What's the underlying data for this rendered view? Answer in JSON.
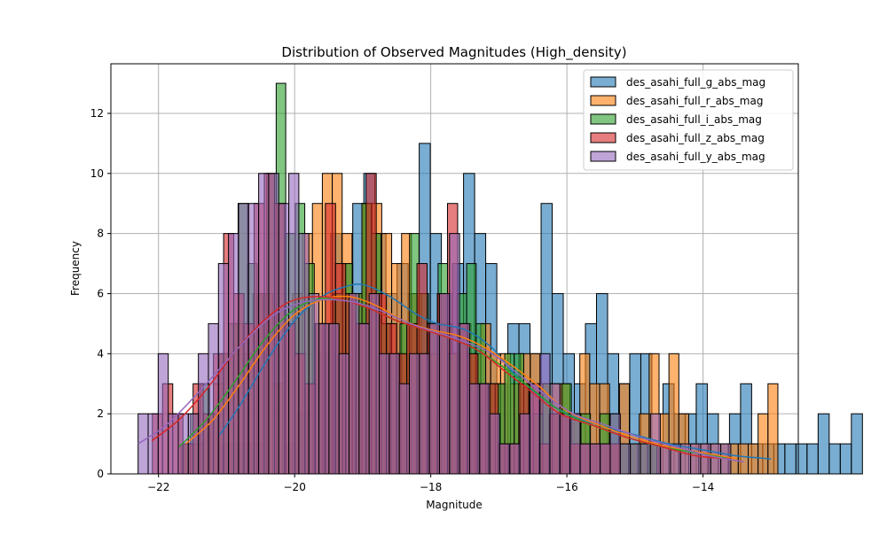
{
  "chart_data": {
    "type": "bar",
    "title": "Distribution of Observed Magnitudes (High_density)",
    "xlabel": "Magnitude",
    "ylabel": "Frequency",
    "xlim": [
      -22.7,
      -12.6
    ],
    "ylim": [
      0,
      13.65
    ],
    "x_ticks": [
      -22,
      -20,
      -18,
      -16,
      -14
    ],
    "x_tick_labels": [
      "−22",
      "−20",
      "−18",
      "−16",
      "−14"
    ],
    "y_ticks": [
      0,
      2,
      4,
      6,
      8,
      10,
      12
    ],
    "y_tick_labels": [
      "0",
      "2",
      "4",
      "6",
      "8",
      "10",
      "12"
    ],
    "grid": true,
    "legend_position": "top-right",
    "series": [
      {
        "name": "des_asahi_full_g_abs_mag",
        "color": "#1f77b4",
        "bin_start": -21.1,
        "bin_width": 0.1628,
        "counts": [
          1,
          1,
          1,
          1,
          0,
          0,
          1,
          2,
          3,
          4,
          8,
          7,
          9,
          10,
          8,
          6,
          7,
          6,
          11,
          8,
          6,
          7,
          10,
          8,
          7,
          3,
          5,
          5,
          4,
          9,
          6,
          4,
          3,
          5,
          6,
          4,
          3,
          4,
          4,
          1,
          3,
          2,
          2,
          3,
          2,
          1,
          2,
          3,
          1,
          1,
          1,
          1,
          1,
          1,
          2,
          1,
          1,
          2
        ],
        "kde": [
          [
            -21.1,
            1.3
          ],
          [
            -20.8,
            2.3
          ],
          [
            -20.4,
            3.8
          ],
          [
            -20.0,
            5.1
          ],
          [
            -19.6,
            5.9
          ],
          [
            -19.3,
            6.2
          ],
          [
            -19.0,
            6.3
          ],
          [
            -18.6,
            5.9
          ],
          [
            -18.2,
            5.3
          ],
          [
            -17.9,
            5.0
          ],
          [
            -17.5,
            4.8
          ],
          [
            -17.1,
            4.2
          ],
          [
            -16.8,
            3.4
          ],
          [
            -16.4,
            2.6
          ],
          [
            -16.0,
            2.0
          ],
          [
            -15.5,
            1.6
          ],
          [
            -15.0,
            1.3
          ],
          [
            -14.5,
            1.0
          ],
          [
            -14.0,
            0.8
          ],
          [
            -13.5,
            0.6
          ],
          [
            -13.0,
            0.5
          ]
        ]
      },
      {
        "name": "des_asahi_full_r_abs_mag",
        "color": "#ff7f0e",
        "bin_start": -21.63,
        "bin_width": 0.1455,
        "counts": [
          1,
          1,
          2,
          3,
          4,
          5,
          4,
          6,
          6,
          3,
          5,
          6,
          8,
          9,
          10,
          10,
          8,
          6,
          9,
          9,
          8,
          7,
          8,
          6,
          4,
          4,
          5,
          4,
          5,
          4,
          5,
          4,
          4,
          3,
          4,
          4,
          3,
          3,
          3,
          2,
          4,
          3,
          3,
          1,
          3,
          1,
          2,
          4,
          2,
          4,
          2,
          1,
          1,
          1,
          1,
          1,
          1,
          1,
          2,
          3
        ],
        "kde": [
          [
            -21.6,
            1.0
          ],
          [
            -21.2,
            1.8
          ],
          [
            -20.8,
            3.0
          ],
          [
            -20.4,
            4.3
          ],
          [
            -20.0,
            5.3
          ],
          [
            -19.6,
            5.8
          ],
          [
            -19.2,
            5.9
          ],
          [
            -18.8,
            5.6
          ],
          [
            -18.4,
            5.1
          ],
          [
            -18.0,
            4.8
          ],
          [
            -17.6,
            4.6
          ],
          [
            -17.2,
            4.2
          ],
          [
            -16.8,
            3.6
          ],
          [
            -16.4,
            2.9
          ],
          [
            -16.0,
            2.1
          ],
          [
            -15.5,
            1.6
          ],
          [
            -15.0,
            1.2
          ],
          [
            -14.5,
            0.9
          ],
          [
            -14.0,
            0.7
          ],
          [
            -13.5,
            0.5
          ]
        ]
      },
      {
        "name": "des_asahi_full_i_abs_mag",
        "color": "#2ca02c",
        "bin_start": -21.67,
        "bin_width": 0.1399,
        "counts": [
          1,
          2,
          3,
          2,
          4,
          5,
          9,
          7,
          6,
          10,
          13,
          8,
          9,
          7,
          5,
          5,
          6,
          7,
          6,
          9,
          8,
          5,
          4,
          5,
          8,
          6,
          5,
          7,
          4,
          6,
          7,
          5,
          3,
          3,
          4,
          4,
          3,
          2,
          3,
          2,
          3,
          2,
          2,
          1,
          2,
          2,
          1,
          1,
          1,
          1
        ],
        "kde": [
          [
            -21.7,
            0.9
          ],
          [
            -21.3,
            1.8
          ],
          [
            -20.9,
            3.0
          ],
          [
            -20.5,
            4.3
          ],
          [
            -20.1,
            5.3
          ],
          [
            -19.7,
            5.8
          ],
          [
            -19.3,
            5.8
          ],
          [
            -18.9,
            5.5
          ],
          [
            -18.5,
            5.1
          ],
          [
            -18.1,
            4.8
          ],
          [
            -17.7,
            4.5
          ],
          [
            -17.3,
            4.1
          ],
          [
            -16.9,
            3.5
          ],
          [
            -16.5,
            2.8
          ],
          [
            -16.1,
            2.1
          ],
          [
            -15.6,
            1.6
          ],
          [
            -15.1,
            1.2
          ],
          [
            -14.6,
            0.9
          ],
          [
            -14.1,
            0.7
          ],
          [
            -13.6,
            0.5
          ]
        ]
      },
      {
        "name": "des_asahi_full_z_abs_mag",
        "color": "#d62728",
        "bin_start": -22.09,
        "bin_width": 0.1495,
        "counts": [
          2,
          3,
          2,
          1,
          3,
          2,
          4,
          8,
          6,
          5,
          9,
          10,
          9,
          5,
          4,
          3,
          5,
          9,
          7,
          6,
          5,
          10,
          6,
          5,
          4,
          5,
          7,
          5,
          6,
          9,
          5,
          4,
          3,
          3,
          1,
          1,
          3,
          3,
          1,
          2,
          2,
          1,
          1,
          1,
          1,
          1
        ],
        "kde": [
          [
            -22.1,
            1.1
          ],
          [
            -21.7,
            1.8
          ],
          [
            -21.3,
            2.8
          ],
          [
            -20.9,
            4.0
          ],
          [
            -20.5,
            5.0
          ],
          [
            -20.1,
            5.7
          ],
          [
            -19.7,
            5.9
          ],
          [
            -19.3,
            5.8
          ],
          [
            -18.9,
            5.5
          ],
          [
            -18.5,
            5.1
          ],
          [
            -18.1,
            4.8
          ],
          [
            -17.7,
            4.5
          ],
          [
            -17.3,
            4.1
          ],
          [
            -16.9,
            3.4
          ],
          [
            -16.5,
            2.7
          ],
          [
            -16.1,
            2.0
          ],
          [
            -15.6,
            1.6
          ],
          [
            -15.1,
            1.2
          ],
          [
            -14.6,
            0.9
          ],
          [
            -14.1,
            0.6
          ],
          [
            -13.6,
            0.5
          ]
        ]
      },
      {
        "name": "des_asahi_full_y_abs_mag",
        "color": "#9467bd",
        "bin_start": -22.3,
        "bin_width": 0.1476,
        "counts": [
          2,
          2,
          4,
          2,
          2,
          2,
          4,
          5,
          7,
          8,
          9,
          9,
          10,
          10,
          9,
          10,
          8,
          6,
          5,
          5,
          4,
          6,
          5,
          6,
          4,
          4,
          3,
          4,
          4,
          5,
          6,
          8,
          5,
          3,
          3,
          2,
          1,
          1,
          2,
          3,
          4,
          3,
          2,
          2,
          1,
          1,
          1,
          2,
          1,
          1,
          1,
          2,
          1,
          1,
          1,
          1,
          1,
          1,
          1
        ],
        "kde": [
          [
            -22.3,
            1.0
          ],
          [
            -21.9,
            1.6
          ],
          [
            -21.5,
            2.5
          ],
          [
            -21.1,
            3.5
          ],
          [
            -20.7,
            4.5
          ],
          [
            -20.3,
            5.3
          ],
          [
            -19.9,
            5.7
          ],
          [
            -19.5,
            5.8
          ],
          [
            -19.1,
            5.7
          ],
          [
            -18.7,
            5.4
          ],
          [
            -18.3,
            5.0
          ],
          [
            -17.9,
            4.7
          ],
          [
            -17.5,
            4.4
          ],
          [
            -17.1,
            4.0
          ],
          [
            -16.7,
            3.3
          ],
          [
            -16.3,
            2.6
          ],
          [
            -15.9,
            2.0
          ],
          [
            -15.4,
            1.6
          ],
          [
            -14.9,
            1.2
          ],
          [
            -14.4,
            0.9
          ],
          [
            -13.9,
            0.6
          ],
          [
            -13.4,
            0.4
          ]
        ]
      }
    ]
  }
}
